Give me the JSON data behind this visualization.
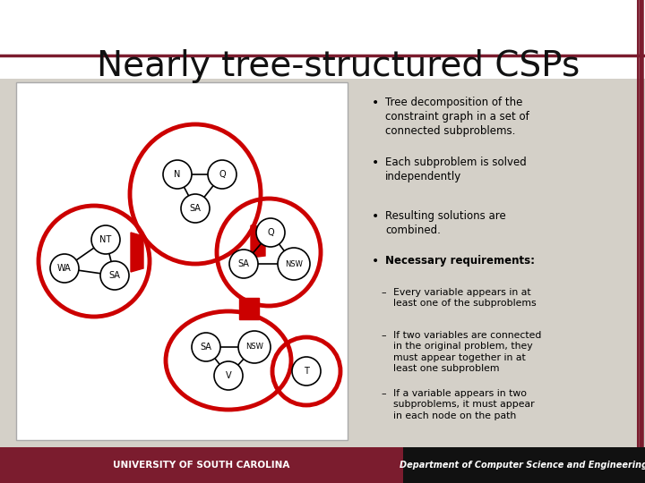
{
  "title": "Nearly tree-structured CSPs",
  "title_fontsize": 28,
  "title_color": "#111111",
  "slide_bg": "#d4d0c8",
  "white": "#ffffff",
  "red_color": "#cc0000",
  "dark_red": "#7b1c2e",
  "diag_bg": "#f0ede8",
  "footer_left_text": "UNIVERSITY OF SOUTH CAROLINA",
  "footer_right_text": "Department of Computer Science and Engineering",
  "bullet_points": [
    "Tree decomposition of the\nconstraint graph in a set of\nconnected subproblems.",
    "Each subproblem is solved\nindependently",
    "Resulting solutions are\ncombined.",
    "Necessary requirements:"
  ],
  "sub_bullets": [
    "Every variable appears in at\nleast one of the subproblems",
    "If two variables are connected\nin the original problem, they\nmust appear together in at\nleast one subproblem",
    "If a variable appears in two\nsubproblems, it must appear\nin each node on the path"
  ]
}
